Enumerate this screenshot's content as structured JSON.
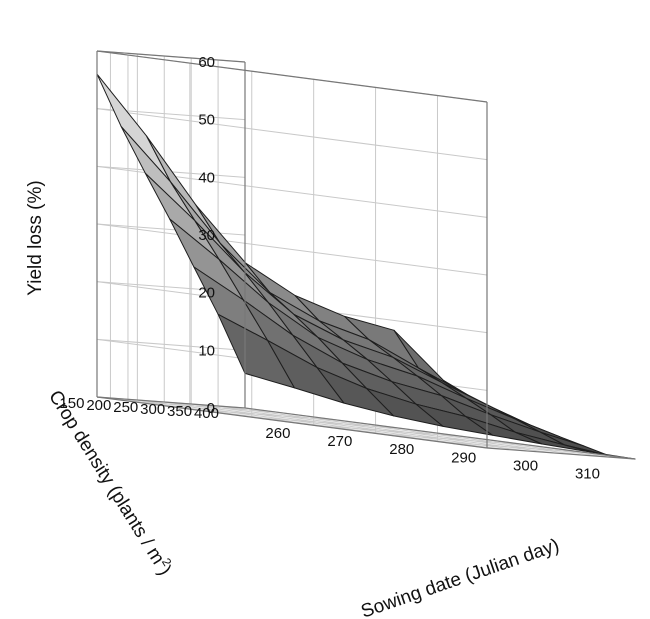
{
  "chart_data": {
    "type": "surface",
    "title": "",
    "zlabel": "Yield loss (%)",
    "ylabel": "Crop density (plants / m",
    "ylabel_sup": "2",
    "ylabel_close": ")",
    "xlabel": "Sowing date (Julian day)",
    "zlim": [
      0,
      60
    ],
    "grid": true,
    "z_ticks": [
      "0",
      "10",
      "20",
      "30",
      "40",
      "50",
      "60"
    ],
    "y_ticks": [
      "150",
      "200",
      "250",
      "300",
      "350",
      "400"
    ],
    "x_ticks": [
      "260",
      "270",
      "280",
      "290",
      "300",
      "310"
    ],
    "sowing_date": [
      255,
      263,
      271,
      279,
      287,
      295,
      303,
      311,
      318
    ],
    "crop_density": [
      125,
      170,
      215,
      260,
      305,
      350,
      400
    ],
    "yield_loss": [
      [
        56.0,
        46.4,
        35.5,
        26.6,
        22.1,
        19.6,
        18.3,
        10.7,
        7.0
      ],
      [
        47.2,
        38.7,
        29.2,
        21.8,
        18.0,
        15.9,
        12.1,
        8.5,
        5.5
      ],
      [
        39.4,
        32.3,
        24.5,
        18.3,
        15.0,
        13.1,
        9.8,
        6.7,
        4.2
      ],
      [
        31.8,
        25.9,
        19.5,
        14.6,
        11.9,
        10.2,
        7.4,
        4.9,
        2.9
      ],
      [
        23.8,
        19.2,
        14.2,
        10.5,
        8.4,
        7.1,
        4.9,
        3.0,
        1.6
      ],
      [
        15.9,
        12.5,
        8.9,
        6.4,
        4.8,
        3.8,
        2.2,
        1.1,
        0.3
      ],
      [
        6.0,
        4.6,
        3.1,
        2.0,
        1.3,
        0.9,
        0.5,
        0.2,
        0.0
      ]
    ]
  }
}
